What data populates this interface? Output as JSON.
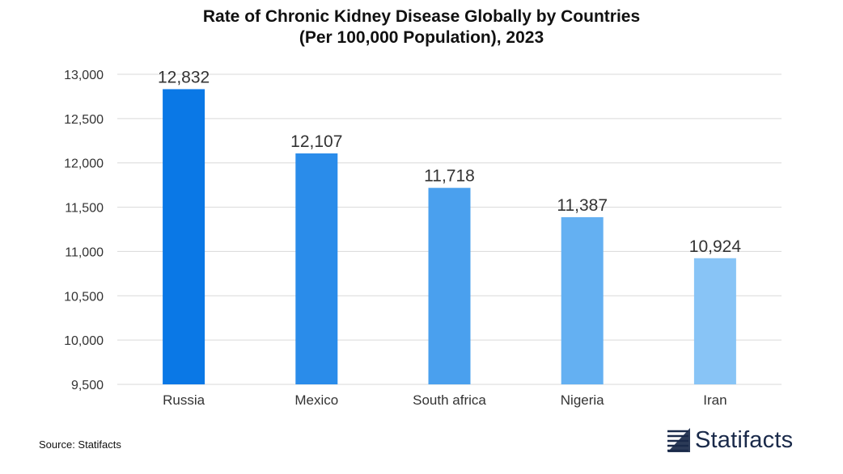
{
  "title_line1": "Rate of Chronic Kidney Disease Globally by Countries",
  "title_line2": "(Per 100,000 Population), 2023",
  "source": "Source: Statifacts",
  "brand": "Statifacts",
  "colors": {
    "bars": [
      "#0a78e6",
      "#2a8cea",
      "#4aa0ee",
      "#64b0f2",
      "#88c4f6"
    ],
    "grid": "#d9d9d9",
    "axis_text": "#333333",
    "label_text": "#333333"
  },
  "chart_data": {
    "type": "bar",
    "categories": [
      "Russia",
      "Mexico",
      "South africa",
      "Nigeria",
      "Iran"
    ],
    "values": [
      12832,
      12107,
      11718,
      11387,
      10924
    ],
    "value_labels": [
      "12,832",
      "12,107",
      "11,718",
      "11,387",
      "10,924"
    ],
    "yticks": [
      "9,500",
      "10,000",
      "10,500",
      "11,000",
      "11,500",
      "12,000",
      "12,500",
      "13,000"
    ],
    "ytick_values": [
      9500,
      10000,
      10500,
      11000,
      11500,
      12000,
      12500,
      13000
    ],
    "ylim": [
      9500,
      13000
    ],
    "grid": true,
    "legend": "none"
  }
}
